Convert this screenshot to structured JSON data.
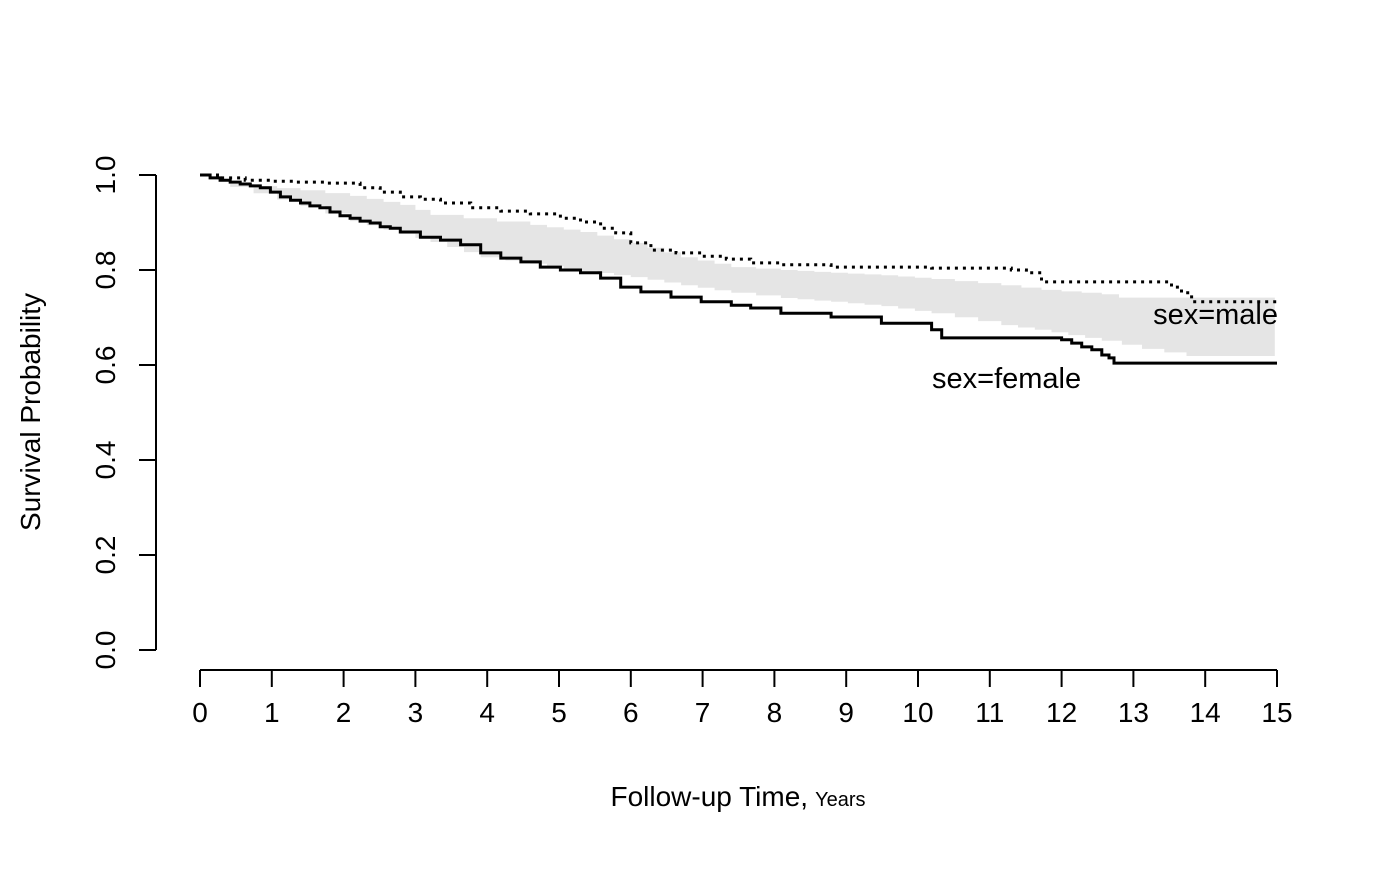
{
  "figure": {
    "background": "#ffffff",
    "text_color": "#000000"
  },
  "chart_data": {
    "type": "line",
    "subtype": "kaplan-meier-step-survival-curves",
    "title": "",
    "xlabel": "Follow-up Time, Years",
    "xlabel_main": "Follow-up Time,",
    "xlabel_suffix": "Years",
    "ylabel": "Survival Probability",
    "xlim": [
      0,
      15
    ],
    "ylim": [
      0.0,
      1.0
    ],
    "grid": false,
    "legend_position": "direct-labels-on-curves",
    "x_tick_values": [
      0,
      1,
      2,
      3,
      4,
      5,
      6,
      7,
      8,
      9,
      10,
      11,
      12,
      13,
      14,
      15
    ],
    "x_tick_labels": [
      "0",
      "1",
      "2",
      "3",
      "4",
      "5",
      "6",
      "7",
      "8",
      "9",
      "10",
      "11",
      "12",
      "13",
      "14",
      "15"
    ],
    "y_tick_values": [
      0.0,
      0.2,
      0.4,
      0.6,
      0.8,
      1.0
    ],
    "y_tick_labels": [
      "0.0",
      "0.2",
      "0.4",
      "0.6",
      "0.8",
      "1.0"
    ],
    "colors": {
      "curves": "#000000",
      "band": "#e5e5e5"
    },
    "series": [
      {
        "name": "male",
        "label": "sex=male",
        "style": "dotted",
        "color": "#000000",
        "t": [
          0,
          0.28,
          0.63,
          0.98,
          1.33,
          1.74,
          2.23,
          2.51,
          2.79,
          3.07,
          3.35,
          3.77,
          4.19,
          4.6,
          5.02,
          5.3,
          5.58,
          5.79,
          6.0,
          6.28,
          6.63,
          6.98,
          7.33,
          7.67,
          8.09,
          8.79,
          10.19,
          11.3,
          11.51,
          11.72,
          13.53,
          13.67,
          13.81,
          15.0
        ],
        "survival": [
          1.0,
          0.994,
          0.989,
          0.987,
          0.985,
          0.983,
          0.973,
          0.964,
          0.954,
          0.949,
          0.941,
          0.931,
          0.924,
          0.918,
          0.909,
          0.901,
          0.888,
          0.878,
          0.857,
          0.842,
          0.836,
          0.829,
          0.823,
          0.815,
          0.811,
          0.806,
          0.804,
          0.8,
          0.794,
          0.775,
          0.764,
          0.752,
          0.733,
          0.733
        ]
      },
      {
        "name": "female",
        "label": "sex=female",
        "style": "solid",
        "color": "#000000",
        "t": [
          0,
          0.14,
          0.28,
          0.42,
          0.56,
          0.7,
          0.84,
          0.98,
          1.12,
          1.26,
          1.4,
          1.53,
          1.67,
          1.81,
          1.95,
          2.09,
          2.23,
          2.37,
          2.51,
          2.65,
          2.79,
          3.07,
          3.35,
          3.63,
          3.91,
          4.19,
          4.47,
          4.74,
          5.02,
          5.3,
          5.58,
          5.86,
          6.14,
          6.56,
          6.98,
          7.4,
          7.67,
          8.09,
          8.79,
          9.49,
          10.19,
          10.33,
          12.0,
          12.14,
          12.28,
          12.42,
          12.56,
          12.66,
          12.73,
          15.0
        ],
        "survival": [
          1.0,
          0.994,
          0.989,
          0.985,
          0.981,
          0.977,
          0.973,
          0.964,
          0.954,
          0.947,
          0.941,
          0.935,
          0.931,
          0.922,
          0.914,
          0.909,
          0.903,
          0.899,
          0.891,
          0.888,
          0.88,
          0.869,
          0.863,
          0.853,
          0.836,
          0.825,
          0.817,
          0.806,
          0.8,
          0.794,
          0.783,
          0.764,
          0.754,
          0.743,
          0.733,
          0.726,
          0.72,
          0.709,
          0.701,
          0.688,
          0.674,
          0.657,
          0.653,
          0.646,
          0.638,
          0.632,
          0.621,
          0.615,
          0.604,
          0.604
        ]
      }
    ],
    "band": {
      "description": "gray shaded region between the two survival curves",
      "color": "#e5e5e5",
      "upper_t": [
        0.42,
        1.4,
        2.09,
        2.79,
        3.21,
        4.6,
        5.3,
        6.0,
        6.7,
        7.4,
        8.09,
        8.79,
        9.49,
        10.19,
        11.16,
        11.72,
        12.56,
        12.8,
        14.97
      ],
      "upper_s": [
        0.981,
        0.968,
        0.956,
        0.937,
        0.916,
        0.895,
        0.88,
        0.857,
        0.827,
        0.806,
        0.8,
        0.794,
        0.789,
        0.781,
        0.768,
        0.758,
        0.749,
        0.742,
        0.742
      ],
      "lower_t": [
        0.42,
        1.4,
        2.09,
        2.79,
        3.21,
        3.91,
        4.6,
        5.3,
        6.0,
        6.7,
        7.4,
        8.09,
        8.79,
        9.49,
        10.19,
        11.16,
        11.86,
        12.56,
        13.12,
        13.74,
        14.97
      ],
      "lower_s": [
        0.975,
        0.935,
        0.903,
        0.876,
        0.859,
        0.827,
        0.813,
        0.798,
        0.785,
        0.768,
        0.752,
        0.741,
        0.733,
        0.724,
        0.709,
        0.684,
        0.669,
        0.651,
        0.634,
        0.619,
        0.619
      ]
    },
    "annotations": [
      {
        "text": "sex=male",
        "attached_to": "male curve right end"
      },
      {
        "text": "sex=female",
        "attached_to": "female curve right end"
      }
    ]
  }
}
